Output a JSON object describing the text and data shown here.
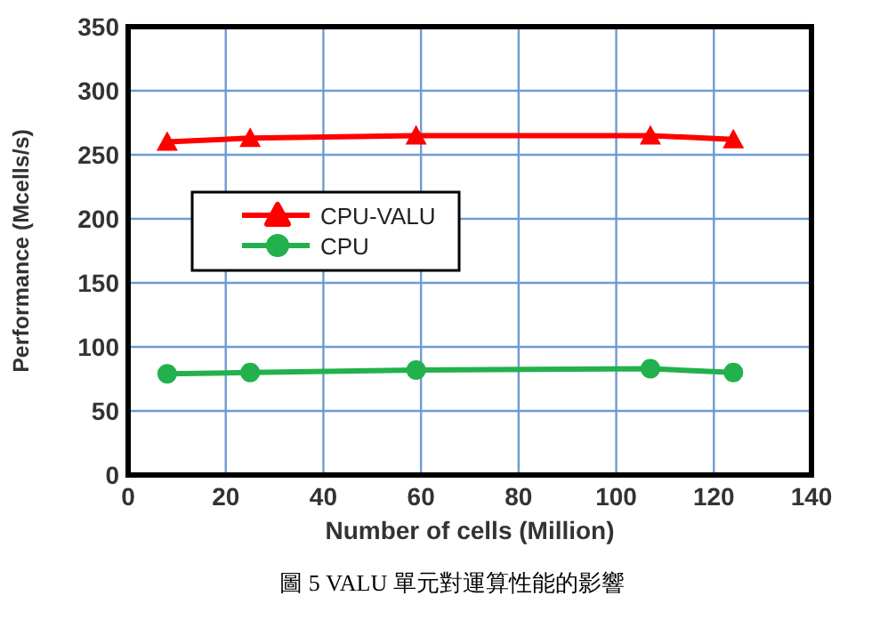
{
  "chart_data": {
    "type": "line",
    "xlabel": "Number of cells (Million)",
    "ylabel": "Performance (Mcells/s)",
    "annotations": [
      "圖 5 VALU 單元對運算性能的影響"
    ],
    "x": [
      8,
      25,
      59,
      107,
      124
    ],
    "xlim": [
      0,
      140
    ],
    "xticks": [
      0,
      20,
      40,
      60,
      80,
      100,
      120,
      140
    ],
    "ylim": [
      0,
      350
    ],
    "yticks": [
      0,
      50,
      100,
      150,
      200,
      250,
      300,
      350
    ],
    "grid": true,
    "legend": "left",
    "series": [
      {
        "name": "CPU-VALU",
        "color": "#ff0000",
        "marker": "triangle",
        "values": [
          260,
          263,
          265,
          265,
          262
        ]
      },
      {
        "name": "CPU",
        "color": "#22b14c",
        "marker": "circle",
        "values": [
          79,
          80,
          82,
          83,
          80
        ]
      }
    ]
  }
}
